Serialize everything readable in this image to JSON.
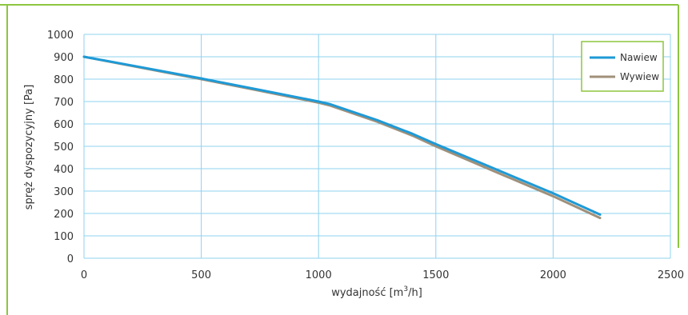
{
  "colors": {
    "frame": "#8dc63f",
    "grid": "#8fd3ef",
    "nawiew": "#1e9ad6",
    "wywiew": "#a0907a",
    "legend_border": "#8dc63f"
  },
  "chart_data": {
    "type": "line",
    "xlabel_main": "wydajność  [m",
    "xlabel_sup": "3",
    "xlabel_end": "/h]",
    "ylabel": "spręż dyspozycyjny  [Pa]",
    "xlim": [
      0,
      2500
    ],
    "ylim": [
      0,
      1000
    ],
    "x_ticks": [
      0,
      500,
      1000,
      1500,
      2000,
      2500
    ],
    "y_ticks": [
      0,
      100,
      200,
      300,
      400,
      500,
      600,
      700,
      800,
      900,
      1000
    ],
    "grid": true,
    "legend_position": "top-right",
    "series": [
      {
        "name": "Nawiew",
        "color_key": "nawiew",
        "x": [
          0,
          250,
          500,
          750,
          1000,
          1050,
          1250,
          1400,
          1500,
          1750,
          2000,
          2200
        ],
        "y": [
          900,
          852,
          803,
          752,
          700,
          688,
          617,
          556,
          510,
          400,
          290,
          195
        ]
      },
      {
        "name": "Wywiew",
        "color_key": "wywiew",
        "x": [
          0,
          250,
          500,
          750,
          1000,
          1050,
          1250,
          1400,
          1500,
          1750,
          2000,
          2200
        ],
        "y": [
          900,
          850,
          800,
          748,
          695,
          682,
          610,
          548,
          500,
          388,
          277,
          180
        ]
      }
    ]
  }
}
